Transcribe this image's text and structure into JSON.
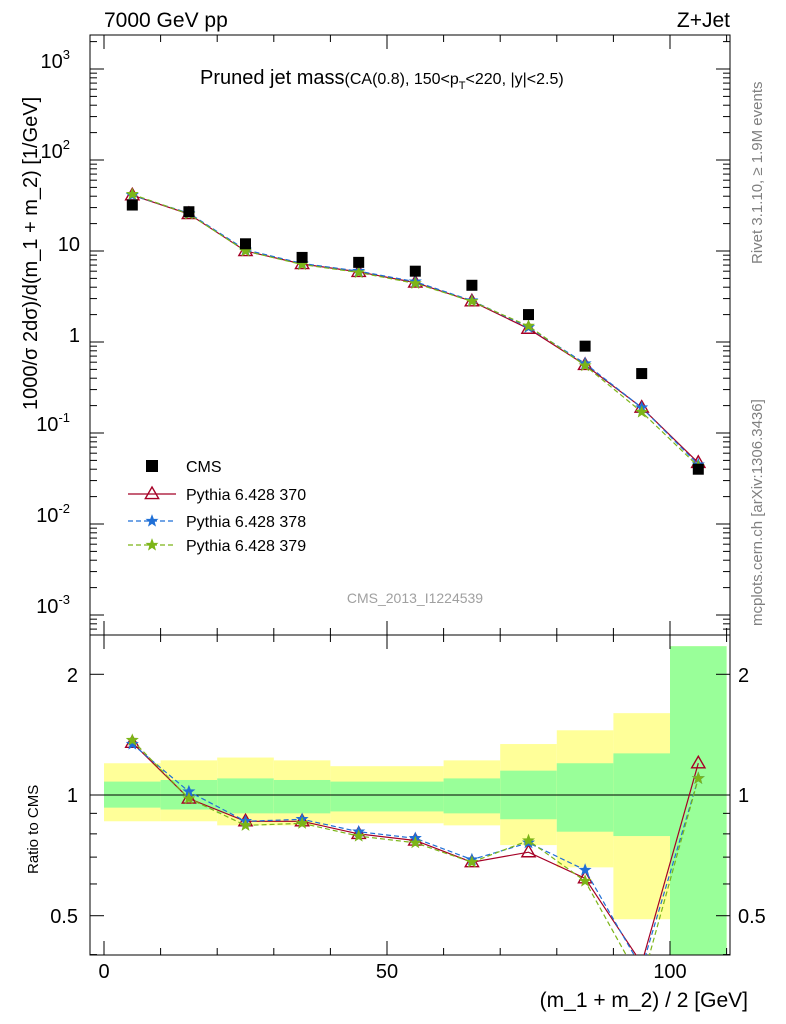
{
  "header": {
    "left": "7000 GeV pp",
    "right": "Z+Jet"
  },
  "plot_title": "Pruned jet mass",
  "plot_subtitle_a": "(CA(0.8), 150<p",
  "plot_subtitle_sub": "T",
  "plot_subtitle_b": "<220, |y|<2.5)",
  "side_labels": {
    "rivet": "Rivet 3.1.10, ≥ 1.9M events",
    "mcplots": "mcplots.cern.ch [arXiv:1306.3436]"
  },
  "analysis_id": "CMS_2013_I1224539",
  "colors": {
    "data": "#000000",
    "mc370": "#a50026",
    "mc378": "#1f6fd6",
    "mc379": "#7cb518",
    "band_inner": "#99ff99",
    "band_outer": "#ffff99"
  },
  "chart_data": [
    {
      "type": "scatter",
      "panel": "main",
      "ylabel": "1000/σ 2dσ)/d(m_1 + m_2) [1/GeV]",
      "yscale": "log",
      "ylim": [
        0.0004,
        2000
      ],
      "xlim": [
        -4,
        111
      ],
      "ytick_labels": [
        "10",
        "10",
        "10",
        "1",
        "10",
        "10",
        "10"
      ],
      "ytick_exps": [
        "-3",
        "-2",
        "-1",
        "",
        "",
        "2",
        "3"
      ],
      "bin_centers": [
        5,
        15,
        25,
        35,
        45,
        55,
        65,
        75,
        85,
        95,
        105
      ],
      "series": [
        {
          "name": "CMS",
          "style": "marker-square",
          "values": [
            32,
            27,
            12,
            8.5,
            7.5,
            6.0,
            4.2,
            2.0,
            0.9,
            0.45,
            0.04
          ]
        },
        {
          "name": "Pythia 6.428 370",
          "style": "line-triangle",
          "values": [
            41,
            25.5,
            10,
            7.2,
            5.9,
            4.5,
            2.8,
            1.4,
            0.56,
            0.19,
            0.047
          ]
        },
        {
          "name": "Pythia 6.428 378",
          "style": "dashed-star",
          "values": [
            41,
            26,
            10.3,
            7.3,
            6.0,
            4.6,
            2.85,
            1.45,
            0.58,
            0.19,
            0.045
          ]
        },
        {
          "name": "Pythia 6.428 379",
          "style": "dashed-star",
          "values": [
            42,
            25.5,
            10,
            7.1,
            5.8,
            4.4,
            2.8,
            1.5,
            0.55,
            0.17,
            0.043
          ]
        }
      ]
    },
    {
      "type": "line",
      "panel": "ratio",
      "ylabel": "Ratio to CMS",
      "xlabel": "(m_1 + m_2) / 2 [GeV]",
      "ylim": [
        0.36,
        2.35
      ],
      "xlim": [
        -4,
        111
      ],
      "xtick_labels": [
        "0",
        "50",
        "100"
      ],
      "ytick_labels": [
        "0.5",
        "1",
        "2"
      ],
      "bin_centers": [
        5,
        15,
        25,
        35,
        45,
        55,
        65,
        75,
        85,
        95,
        105
      ],
      "band": {
        "edges": [
          0,
          10,
          20,
          30,
          40,
          50,
          60,
          70,
          80,
          90,
          100,
          110
        ],
        "inner": [
          [
            0.93,
            1.08
          ],
          [
            0.92,
            1.09
          ],
          [
            0.9,
            1.1
          ],
          [
            0.9,
            1.09
          ],
          [
            0.91,
            1.08
          ],
          [
            0.91,
            1.08
          ],
          [
            0.9,
            1.1
          ],
          [
            0.87,
            1.15
          ],
          [
            0.81,
            1.2
          ],
          [
            0.79,
            1.27
          ],
          [
            0.36,
            2.35
          ]
        ],
        "outer": [
          [
            0.86,
            1.2
          ],
          [
            0.86,
            1.22
          ],
          [
            0.84,
            1.24
          ],
          [
            0.84,
            1.22
          ],
          [
            0.85,
            1.18
          ],
          [
            0.85,
            1.18
          ],
          [
            0.84,
            1.22
          ],
          [
            0.75,
            1.34
          ],
          [
            0.66,
            1.45
          ],
          [
            0.49,
            1.6
          ],
          [
            0.36,
            2.35
          ]
        ]
      },
      "series": [
        {
          "name": "Pythia 6.428 370",
          "values": [
            1.35,
            0.98,
            0.86,
            0.86,
            0.8,
            0.77,
            0.68,
            0.72,
            0.62,
            0.38,
            1.2
          ]
        },
        {
          "name": "Pythia 6.428 378",
          "values": [
            1.34,
            1.02,
            0.86,
            0.87,
            0.81,
            0.78,
            0.69,
            0.76,
            0.65,
            0.37,
            1.1
          ]
        },
        {
          "name": "Pythia 6.428 379",
          "values": [
            1.37,
            0.98,
            0.84,
            0.85,
            0.79,
            0.76,
            0.68,
            0.77,
            0.61,
            0.34,
            1.1
          ]
        }
      ]
    }
  ]
}
